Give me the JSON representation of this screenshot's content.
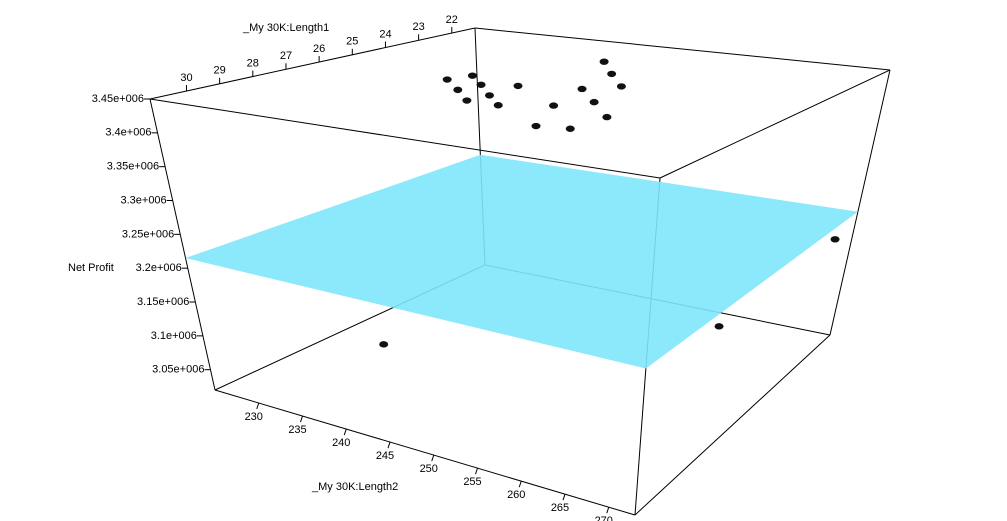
{
  "chart_data": {
    "type": "scatter3d",
    "xlabel": "_My 30K:Length2",
    "ylabel": "_My 30K:Length1",
    "zlabel": "Net Profit",
    "xlim": [
      225,
      273
    ],
    "xticks": [
      230,
      235,
      240,
      245,
      250,
      255,
      260,
      265,
      270
    ],
    "ylim": [
      31.1,
      21.3
    ],
    "yticks": [
      30,
      29,
      28,
      27,
      26,
      25,
      24,
      23,
      22
    ],
    "zlim": [
      3020000,
      3450000
    ],
    "zticks": [
      {
        "value": 3050000,
        "label": "3.05e+006"
      },
      {
        "value": 3100000,
        "label": "3.1e+006"
      },
      {
        "value": 3150000,
        "label": "3.15e+006"
      },
      {
        "value": 3200000,
        "label": "3.2e+006"
      },
      {
        "value": 3250000,
        "label": "3.25e+006"
      },
      {
        "value": 3300000,
        "label": "3.3e+006"
      },
      {
        "value": 3350000,
        "label": "3.35e+006"
      },
      {
        "value": 3400000,
        "label": "3.4e+006"
      },
      {
        "value": 3450000,
        "label": "3.45e+006"
      }
    ],
    "series": [
      {
        "color": "#111111",
        "x": [
          236.9,
          237.7,
          240.7,
          240.3,
          243.9,
          243.5,
          246.8,
          243.7,
          250.9,
          253.9,
          256.9,
          249.3,
          253.2,
          257.3,
          244.2,
          248.0,
          251.8,
          236.0,
          263.4,
          271.6
        ],
        "y": [
          25.56,
          24.98,
          25.63,
          26.28,
          26.38,
          27.02,
          27.05,
          25.34,
          26.5,
          28.21,
          28.05,
          24.94,
          25.83,
          26.82,
          22.55,
          23.47,
          24.36,
          28.16,
          23.46,
          21.6
        ],
        "z": [
          3440000,
          3440000,
          3440000,
          3440000,
          3440000,
          3440000,
          3440000,
          3440000,
          3440000,
          3440000,
          3440000,
          3440000,
          3440000,
          3440000,
          3440000,
          3440000,
          3440000,
          3070000,
          3070000,
          3180000
        ]
      }
    ],
    "surface": {
      "color": "#80e5fb",
      "z": [
        [
          3215000,
          3207000
        ],
        [
          3220000,
          3220000
        ]
      ]
    }
  }
}
